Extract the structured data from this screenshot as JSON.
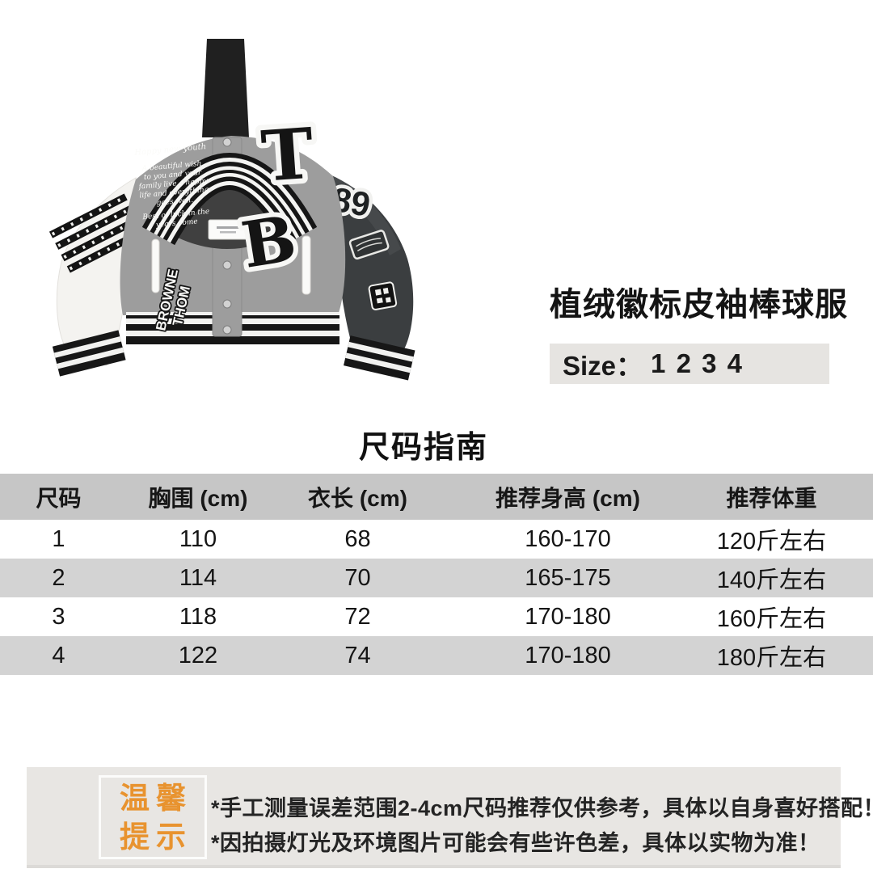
{
  "product": {
    "title": "植绒徽标皮袖棒球服",
    "size_label": "Size：",
    "size_values": "1 2 3 4"
  },
  "size_guide": {
    "heading": "尺码指南",
    "columns": [
      "尺码",
      "胸围 (cm)",
      "衣长 (cm)",
      "推荐身高 (cm)",
      "推荐体重"
    ],
    "rows": [
      [
        "1",
        "110",
        "68",
        "160-170",
        "120斤左右"
      ],
      [
        "2",
        "114",
        "70",
        "165-175",
        "140斤左右"
      ],
      [
        "3",
        "118",
        "72",
        "170-180",
        "160斤左右"
      ],
      [
        "4",
        "122",
        "74",
        "170-180",
        "180斤左右"
      ]
    ]
  },
  "notice": {
    "tips_line1": "温馨",
    "tips_line2": "提示",
    "notes": [
      "*手工测量误差范围2-4cm尺码推荐仅供参考，具体以自身喜好搭配！",
      "*因拍摄灯光及环境图片可能会有些许色差，具体以实物为准！"
    ]
  },
  "jacket": {
    "letter_patch_top": "T",
    "letter_patch_bottom": "B",
    "sleeve_number": "89",
    "vertical_patch_line1": "THOM",
    "vertical_patch_line2": "BROWNE",
    "script_lines": [
      "Happy new youth",
      "A beautiful wish",
      "to you and your",
      "family live a happy",
      "life and everything",
      "goes well.",
      "Best of luck in the",
      "years come"
    ]
  },
  "colors": {
    "accent_orange": "#e8932f",
    "table_header_bg": "#c6c6c6",
    "row_alt_bg": "#d3d3d3",
    "panel_bg": "#e8e6e3",
    "size_bar_bg": "#e6e4e1"
  }
}
